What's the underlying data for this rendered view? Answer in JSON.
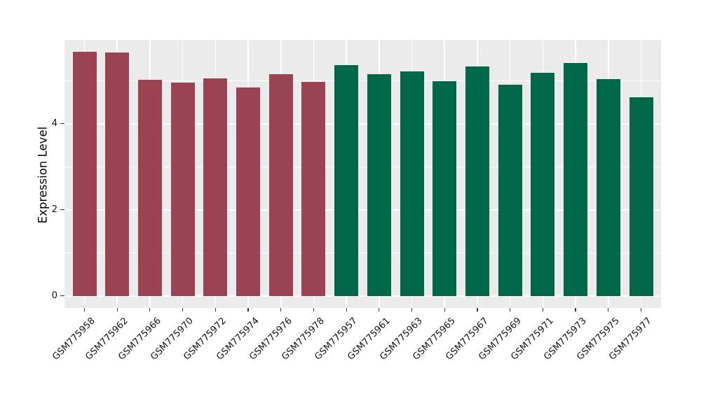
{
  "chart_data": {
    "type": "bar",
    "title": "",
    "xlabel": "",
    "ylabel": "Expression Level",
    "y_ticks": [
      0,
      2,
      4
    ],
    "y_minor_ticks": [
      1,
      3,
      5
    ],
    "ylim": [
      -0.28,
      5.95
    ],
    "grid": true,
    "legend": "none",
    "panel_background": "#EBEBEB",
    "gridline_color": "#FFFFFF",
    "groups": {
      "maroon": "#9C4353",
      "green": "#006749"
    },
    "bars": [
      {
        "label": "GSM775958",
        "value": 5.67,
        "group": "maroon"
      },
      {
        "label": "GSM775962",
        "value": 5.65,
        "group": "maroon"
      },
      {
        "label": "GSM775966",
        "value": 5.02,
        "group": "maroon"
      },
      {
        "label": "GSM775970",
        "value": 4.96,
        "group": "maroon"
      },
      {
        "label": "GSM775972",
        "value": 5.06,
        "group": "maroon"
      },
      {
        "label": "GSM775974",
        "value": 4.84,
        "group": "maroon"
      },
      {
        "label": "GSM775976",
        "value": 5.15,
        "group": "maroon"
      },
      {
        "label": "GSM775978",
        "value": 4.98,
        "group": "maroon"
      },
      {
        "label": "GSM775957",
        "value": 5.37,
        "group": "green"
      },
      {
        "label": "GSM775961",
        "value": 5.15,
        "group": "green"
      },
      {
        "label": "GSM775963",
        "value": 5.21,
        "group": "green"
      },
      {
        "label": "GSM775965",
        "value": 4.99,
        "group": "green"
      },
      {
        "label": "GSM775967",
        "value": 5.33,
        "group": "green"
      },
      {
        "label": "GSM775969",
        "value": 4.91,
        "group": "green"
      },
      {
        "label": "GSM775971",
        "value": 5.18,
        "group": "green"
      },
      {
        "label": "GSM775973",
        "value": 5.42,
        "group": "green"
      },
      {
        "label": "GSM775975",
        "value": 5.04,
        "group": "green"
      },
      {
        "label": "GSM775977",
        "value": 4.61,
        "group": "green"
      }
    ]
  }
}
